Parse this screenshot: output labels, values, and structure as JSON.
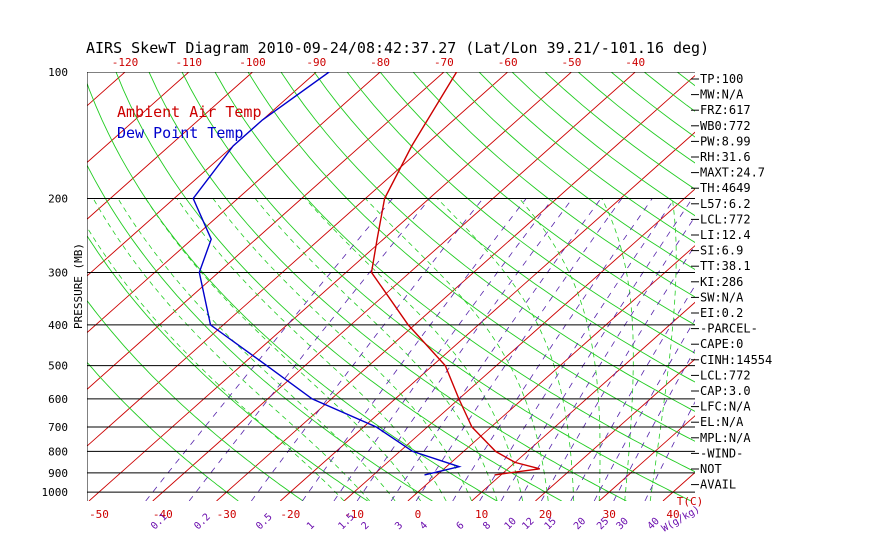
{
  "chart_data": {
    "type": "line",
    "title": "AIRS SkewT Diagram 2010-09-24/08:42:37.27 (Lat/Lon 39.21/-101.16 deg)",
    "ylabel": "PRESSURE (MB)",
    "x_units_label": "T(C)",
    "mixing_units_label": "W(g/kg)",
    "legend_placement": "top-left",
    "pressure_range": [
      1000,
      100
    ],
    "log_pressure_axis": true,
    "pressure_levels": [
      100,
      200,
      300,
      400,
      500,
      600,
      700,
      800,
      900,
      1000
    ],
    "top_ticks": [
      -120,
      -110,
      -100,
      -90,
      -80,
      -70,
      -60,
      -50,
      -40
    ],
    "bottom_ticks": [
      -50,
      -40,
      -30,
      -20,
      -10,
      0,
      10,
      20,
      30,
      40
    ],
    "mixing_ratio_labels": [
      "0.1",
      "0.2",
      "0.5",
      "1",
      "1.5",
      "2",
      "3",
      "4",
      "6",
      "8",
      "10",
      "12",
      "15",
      "20",
      "25",
      "30",
      "40"
    ],
    "series": [
      {
        "name": "Ambient Air Temp",
        "color": "#cc0000",
        "points": [
          {
            "p": 100,
            "t": -68
          },
          {
            "p": 150,
            "t": -62
          },
          {
            "p": 200,
            "t": -57
          },
          {
            "p": 250,
            "t": -51
          },
          {
            "p": 300,
            "t": -46
          },
          {
            "p": 400,
            "t": -31
          },
          {
            "p": 500,
            "t": -18
          },
          {
            "p": 600,
            "t": -10
          },
          {
            "p": 700,
            "t": -3
          },
          {
            "p": 800,
            "t": 5
          },
          {
            "p": 850,
            "t": 10
          },
          {
            "p": 880,
            "t": 15
          },
          {
            "p": 910,
            "t": 9
          }
        ]
      },
      {
        "name": "Dew Point Temp",
        "color": "#0000cc",
        "points": [
          {
            "p": 100,
            "t": -88
          },
          {
            "p": 130,
            "t": -90
          },
          {
            "p": 150,
            "t": -90
          },
          {
            "p": 200,
            "t": -87
          },
          {
            "p": 250,
            "t": -77
          },
          {
            "p": 300,
            "t": -73
          },
          {
            "p": 400,
            "t": -62
          },
          {
            "p": 500,
            "t": -46
          },
          {
            "p": 600,
            "t": -33
          },
          {
            "p": 700,
            "t": -18
          },
          {
            "p": 800,
            "t": -8
          },
          {
            "p": 870,
            "t": 2
          },
          {
            "p": 910,
            "t": -2
          }
        ]
      }
    ],
    "indices": [
      "TP:100",
      "MW:N/A",
      "FRZ:617",
      "WB0:772",
      "PW:8.99",
      "RH:31.6",
      "MAXT:24.7",
      "TH:4649",
      "L57:6.2",
      "LCL:772",
      "LI:12.4",
      "SI:6.9",
      "TT:38.1",
      "KI:286",
      "SW:N/A",
      "EI:0.2",
      "-PARCEL-",
      "CAPE:0",
      "CINH:14554",
      "LCL:772",
      "CAP:3.0",
      "LFC:N/A",
      "EL:N/A",
      "MPL:N/A",
      "-WIND-",
      "NOT",
      "AVAIL"
    ]
  }
}
